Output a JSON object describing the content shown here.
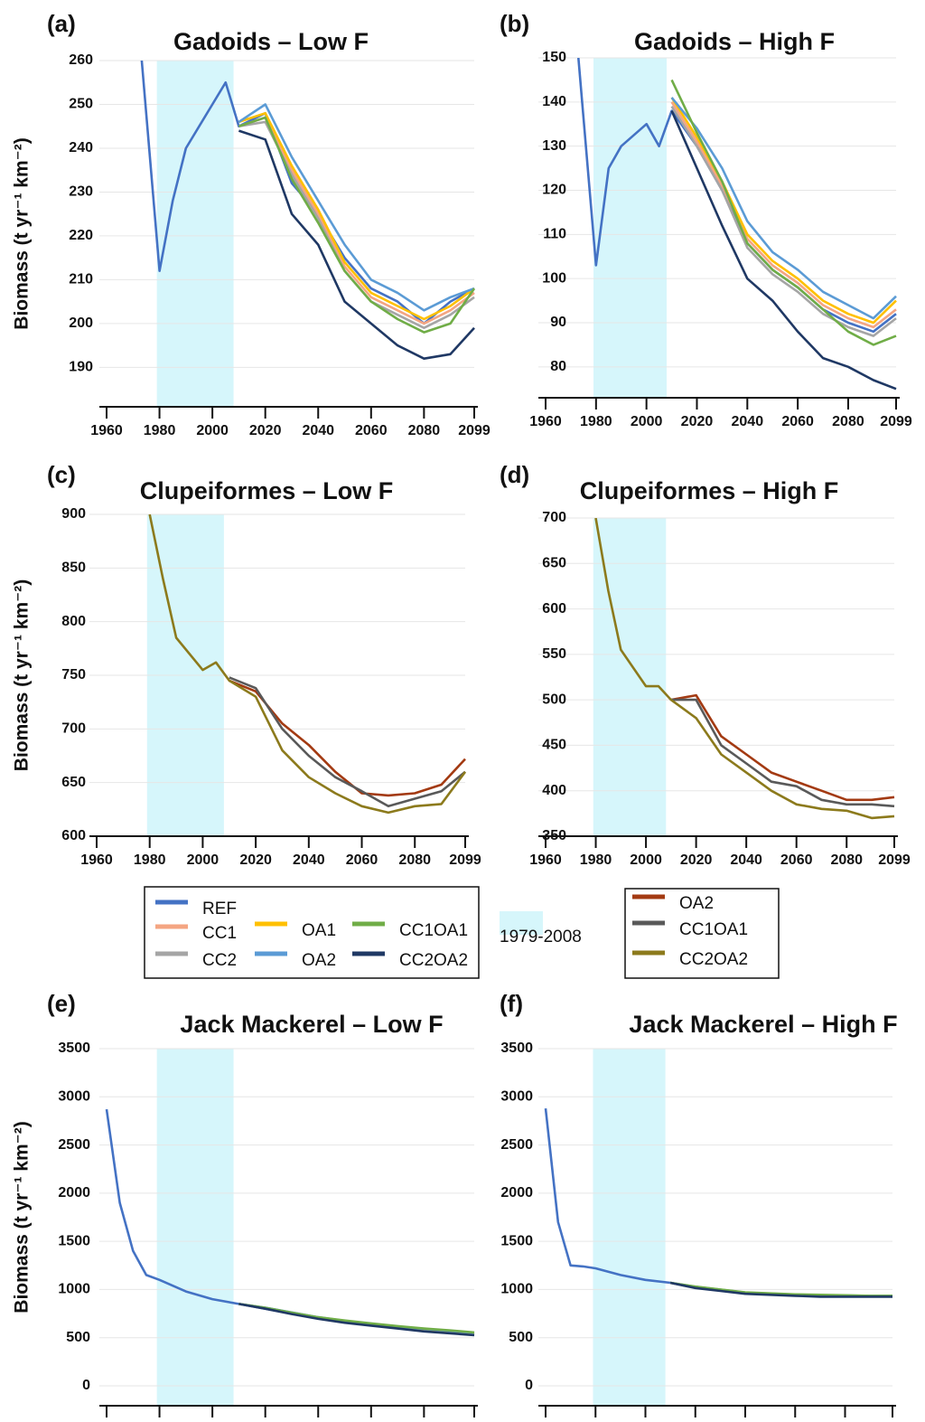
{
  "chart_data": [
    {
      "type": "line",
      "label": "(a)",
      "title": "Gadoids – Low F",
      "ylabel": "Biomass (t yr⁻¹ km⁻²)",
      "x": [
        1973,
        1980,
        1985,
        1990,
        2000,
        2005,
        2010,
        2020,
        2030,
        2040,
        2050,
        2060,
        2070,
        2080,
        2090,
        2099
      ],
      "series": [
        {
          "name": "REF",
          "color": "#4472c4",
          "values": [
            262,
            212,
            228,
            240,
            250,
            255,
            245,
            248,
            232,
            225,
            215,
            208,
            205,
            200,
            205,
            208
          ]
        },
        {
          "name": "CC1",
          "color": "#f4a582",
          "values": [
            null,
            null,
            null,
            null,
            null,
            null,
            245,
            247,
            235,
            225,
            213,
            206,
            203,
            200,
            203,
            207
          ]
        },
        {
          "name": "CC2",
          "color": "#a5a5a5",
          "values": [
            null,
            null,
            null,
            null,
            null,
            null,
            245,
            246,
            234,
            224,
            212,
            205,
            202,
            199,
            202,
            206
          ]
        },
        {
          "name": "OA1",
          "color": "#ffc000",
          "values": [
            null,
            null,
            null,
            null,
            null,
            null,
            246,
            248,
            236,
            226,
            214,
            207,
            204,
            201,
            204,
            208
          ]
        },
        {
          "name": "OA2",
          "color": "#5b9bd5",
          "values": [
            null,
            null,
            null,
            null,
            null,
            null,
            246,
            250,
            238,
            228,
            218,
            210,
            207,
            203,
            206,
            208
          ]
        },
        {
          "name": "CC1OA1",
          "color": "#70ad47",
          "values": [
            null,
            null,
            null,
            null,
            null,
            null,
            245,
            247,
            233,
            223,
            212,
            205,
            201,
            198,
            200,
            208
          ]
        },
        {
          "name": "CC2OA2",
          "color": "#1f3864",
          "values": [
            null,
            null,
            null,
            null,
            null,
            null,
            244,
            242,
            225,
            218,
            205,
            200,
            195,
            192,
            193,
            199
          ]
        }
      ],
      "xlim": [
        1960,
        2099
      ],
      "xticks": [
        1960,
        1980,
        2000,
        2020,
        2040,
        2060,
        2080,
        2099
      ],
      "ylim": [
        181,
        260
      ],
      "yticks": [
        190,
        200,
        210,
        220,
        230,
        240,
        250,
        260
      ],
      "grid": true,
      "shade": [
        1979,
        2008
      ],
      "shade_color": "#d6f6fb",
      "legend": true
    },
    {
      "type": "line",
      "label": "(b)",
      "title": "Gadoids – High F",
      "x": [
        1973,
        1980,
        1985,
        1990,
        2000,
        2005,
        2010,
        2020,
        2030,
        2040,
        2050,
        2060,
        2070,
        2080,
        2090,
        2099
      ],
      "series": [
        {
          "name": "REF",
          "color": "#4472c4",
          "values": [
            150,
            103,
            125,
            130,
            135,
            130,
            138,
            130,
            120,
            108,
            102,
            98,
            93,
            90,
            88,
            92
          ]
        },
        {
          "name": "CC1",
          "color": "#f4a582",
          "values": [
            null,
            null,
            null,
            null,
            null,
            null,
            140,
            131,
            121,
            109,
            103,
            99,
            94,
            91,
            89,
            93
          ]
        },
        {
          "name": "CC2",
          "color": "#a5a5a5",
          "values": [
            null,
            null,
            null,
            null,
            null,
            null,
            139,
            130,
            120,
            107,
            101,
            97,
            92,
            89,
            87,
            91
          ]
        },
        {
          "name": "OA1",
          "color": "#ffc000",
          "values": [
            null,
            null,
            null,
            null,
            null,
            null,
            141,
            132,
            122,
            110,
            104,
            100,
            95,
            92,
            90,
            95
          ]
        },
        {
          "name": "OA2",
          "color": "#5b9bd5",
          "values": [
            null,
            null,
            null,
            null,
            null,
            null,
            141,
            134,
            125,
            113,
            106,
            102,
            97,
            94,
            91,
            96
          ]
        },
        {
          "name": "CC1OA1",
          "color": "#70ad47",
          "values": [
            null,
            null,
            null,
            null,
            null,
            null,
            145,
            133,
            122,
            108,
            102,
            98,
            93,
            88,
            85,
            87
          ]
        },
        {
          "name": "CC2OA2",
          "color": "#1f3864",
          "values": [
            null,
            null,
            null,
            null,
            null,
            null,
            138,
            125,
            112,
            100,
            95,
            88,
            82,
            80,
            77,
            75
          ]
        }
      ],
      "xlim": [
        1960,
        2099
      ],
      "xticks": [
        1960,
        1980,
        2000,
        2020,
        2040,
        2060,
        2080,
        2099
      ],
      "ylim": [
        73,
        150
      ],
      "yticks": [
        80,
        90,
        100,
        110,
        120,
        130,
        140,
        150
      ],
      "grid": true,
      "shade": [
        1979,
        2008
      ],
      "shade_color": "#d6f6fb"
    },
    {
      "type": "line",
      "label": "(c)",
      "title": "Clupeiformes – Low F",
      "ylabel": "Biomass (t yr⁻¹ km⁻²)",
      "x": [
        1973,
        1980,
        1985,
        1990,
        2000,
        2005,
        2010,
        2020,
        2030,
        2040,
        2050,
        2060,
        2070,
        2080,
        2090,
        2099
      ],
      "series": [
        {
          "name": "OA2",
          "color": "#a33a12",
          "values": [
            null,
            null,
            null,
            null,
            null,
            null,
            745,
            735,
            705,
            685,
            660,
            640,
            638,
            640,
            648,
            672
          ]
        },
        {
          "name": "CC1OA1",
          "color": "#595959",
          "values": [
            null,
            null,
            null,
            null,
            null,
            null,
            748,
            738,
            700,
            675,
            655,
            642,
            628,
            635,
            642,
            660
          ]
        },
        {
          "name": "CC2OA2",
          "color": "#8c7a1c",
          "values": [
            null,
            900,
            840,
            785,
            755,
            762,
            745,
            730,
            680,
            655,
            640,
            628,
            622,
            628,
            630,
            660
          ]
        }
      ],
      "xlim": [
        1960,
        2099
      ],
      "xticks": [
        1960,
        1980,
        2000,
        2020,
        2040,
        2060,
        2080,
        2099
      ],
      "ylim": [
        600,
        900
      ],
      "yticks": [
        600,
        650,
        700,
        750,
        800,
        850,
        900
      ],
      "grid": true,
      "shade": [
        1979,
        2008
      ],
      "shade_color": "#d6f6fb",
      "legend": true
    },
    {
      "type": "line",
      "label": "(d)",
      "title": "Clupeiformes – High F",
      "x": [
        1973,
        1980,
        1985,
        1990,
        2000,
        2005,
        2010,
        2020,
        2030,
        2040,
        2050,
        2060,
        2070,
        2080,
        2090,
        2099
      ],
      "series": [
        {
          "name": "OA2",
          "color": "#a33a12",
          "values": [
            null,
            null,
            null,
            null,
            null,
            null,
            500,
            505,
            460,
            440,
            420,
            410,
            400,
            390,
            390,
            393
          ]
        },
        {
          "name": "CC1OA1",
          "color": "#595959",
          "values": [
            null,
            null,
            null,
            null,
            null,
            null,
            500,
            500,
            450,
            430,
            410,
            405,
            390,
            385,
            385,
            383
          ]
        },
        {
          "name": "CC2OA2",
          "color": "#8c7a1c",
          "values": [
            null,
            700,
            620,
            555,
            515,
            515,
            500,
            480,
            440,
            420,
            400,
            385,
            380,
            378,
            370,
            372
          ]
        }
      ],
      "xlim": [
        1960,
        2099
      ],
      "xticks": [
        1960,
        1980,
        2000,
        2020,
        2040,
        2060,
        2080,
        2099
      ],
      "ylim": [
        350,
        700
      ],
      "yticks": [
        350,
        400,
        450,
        500,
        550,
        600,
        650,
        700
      ],
      "grid": true,
      "shade": [
        1979,
        2008
      ],
      "shade_color": "#d6f6fb"
    },
    {
      "type": "line",
      "label": "(e)",
      "title": "Jack Mackerel – Low F",
      "ylabel": "Biomass (t yr⁻¹ km⁻²)",
      "x": [
        1960,
        1965,
        1970,
        1975,
        1980,
        1990,
        2000,
        2010,
        2020,
        2030,
        2040,
        2050,
        2060,
        2070,
        2080,
        2090,
        2099
      ],
      "series": [
        {
          "name": "REF",
          "color": "#4472c4",
          "values": [
            2870,
            1900,
            1400,
            1150,
            1100,
            980,
            900,
            850,
            800,
            750,
            700,
            660,
            630,
            600,
            570,
            550,
            530
          ]
        },
        {
          "name": "CC1",
          "color": "#f4a582",
          "values": [
            null,
            null,
            null,
            null,
            null,
            null,
            null,
            850,
            805,
            755,
            705,
            665,
            635,
            605,
            575,
            555,
            535
          ]
        },
        {
          "name": "CC2",
          "color": "#a5a5a5",
          "values": [
            null,
            null,
            null,
            null,
            null,
            null,
            null,
            850,
            805,
            755,
            708,
            668,
            640,
            610,
            580,
            560,
            540
          ]
        },
        {
          "name": "OA1",
          "color": "#ffc000",
          "values": [
            null,
            null,
            null,
            null,
            null,
            null,
            null,
            850,
            810,
            760,
            710,
            670,
            640,
            612,
            585,
            565,
            545
          ]
        },
        {
          "name": "OA2",
          "color": "#5b9bd5",
          "values": [
            null,
            null,
            null,
            null,
            null,
            null,
            null,
            850,
            812,
            762,
            712,
            675,
            645,
            615,
            590,
            570,
            550
          ]
        },
        {
          "name": "CC1OA1",
          "color": "#70ad47",
          "values": [
            null,
            null,
            null,
            null,
            null,
            null,
            null,
            850,
            810,
            760,
            712,
            678,
            648,
            620,
            595,
            575,
            555
          ]
        },
        {
          "name": "CC2OA2",
          "color": "#1f3864",
          "values": [
            null,
            null,
            null,
            null,
            null,
            null,
            null,
            850,
            800,
            745,
            695,
            655,
            625,
            595,
            565,
            545,
            525
          ]
        }
      ],
      "xlim": [
        1960,
        2099
      ],
      "xticks": [
        1960,
        1980,
        2000,
        2020,
        2040,
        2060,
        2080,
        2099
      ],
      "ylim": [
        0,
        3500
      ],
      "yticks": [
        0,
        500,
        1000,
        1500,
        2000,
        2500,
        3000,
        3500
      ],
      "grid": true,
      "shade": [
        1979,
        2008
      ],
      "shade_color": "#d6f6fb"
    },
    {
      "type": "line",
      "label": "(f)",
      "title": "Jack Mackerel – High F",
      "x": [
        1960,
        1965,
        1970,
        1975,
        1980,
        1990,
        2000,
        2010,
        2020,
        2030,
        2040,
        2050,
        2060,
        2070,
        2080,
        2090,
        2099
      ],
      "series": [
        {
          "name": "REF",
          "color": "#4472c4",
          "values": [
            2880,
            1700,
            1250,
            1240,
            1220,
            1150,
            1100,
            1070,
            1020,
            990,
            960,
            950,
            940,
            930,
            930,
            930,
            930
          ]
        },
        {
          "name": "CC1",
          "color": "#f4a582",
          "values": [
            null,
            null,
            null,
            null,
            null,
            null,
            null,
            1070,
            1022,
            992,
            962,
            952,
            942,
            932,
            932,
            930,
            930
          ]
        },
        {
          "name": "CC2",
          "color": "#a5a5a5",
          "values": [
            null,
            null,
            null,
            null,
            null,
            null,
            null,
            1070,
            1020,
            990,
            960,
            948,
            938,
            930,
            928,
            928,
            928
          ]
        },
        {
          "name": "OA1",
          "color": "#ffc000",
          "values": [
            null,
            null,
            null,
            null,
            null,
            null,
            null,
            1070,
            1025,
            995,
            965,
            955,
            945,
            935,
            935,
            932,
            932
          ]
        },
        {
          "name": "OA2",
          "color": "#5b9bd5",
          "values": [
            null,
            null,
            null,
            null,
            null,
            null,
            null,
            1070,
            1028,
            998,
            968,
            958,
            948,
            940,
            938,
            935,
            935
          ]
        },
        {
          "name": "CC1OA1",
          "color": "#70ad47",
          "values": [
            null,
            null,
            null,
            null,
            null,
            null,
            null,
            1070,
            1030,
            1000,
            970,
            960,
            950,
            945,
            940,
            935,
            935
          ]
        },
        {
          "name": "CC2OA2",
          "color": "#1f3864",
          "values": [
            null,
            null,
            null,
            null,
            null,
            null,
            null,
            1070,
            1015,
            985,
            955,
            945,
            935,
            925,
            925,
            925,
            925
          ]
        }
      ],
      "xlim": [
        1960,
        2099
      ],
      "xticks": [
        1960,
        1980,
        2000,
        2020,
        2040,
        2060,
        2080,
        2099
      ],
      "ylim": [
        0,
        3500
      ],
      "yticks": [
        0,
        500,
        1000,
        1500,
        2000,
        2500,
        3000,
        3500
      ],
      "grid": true,
      "shade": [
        1979,
        2008
      ],
      "shade_color": "#d6f6fb"
    }
  ],
  "shade_label": "1979-2008"
}
